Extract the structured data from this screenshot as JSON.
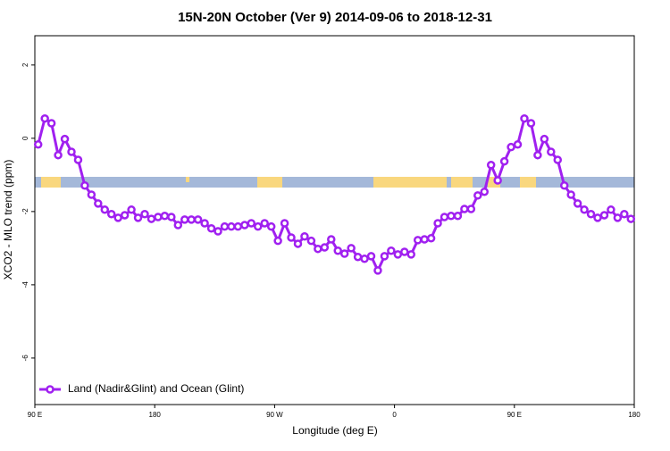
{
  "chart_data": {
    "type": "line",
    "title": "15N-20N October (Ver 9)   2014-09-06 to 2018-12-31",
    "x_label": "Longitude (deg E)",
    "y_label": "XCO2 - MLO trend (ppm)",
    "xlim": [
      90,
      540
    ],
    "ylim": [
      -7.27,
      2.8
    ],
    "xticks": [
      {
        "value": 90,
        "label": "90 E"
      },
      180,
      {
        "value": 270,
        "label": "90 W"
      },
      {
        "value": 360,
        "label": "0"
      },
      {
        "value": 450,
        "label": "90 E"
      },
      {
        "value": 540,
        "label": "180"
      }
    ],
    "yticks": [
      -6,
      -4,
      -2,
      0,
      2
    ],
    "legend": "bottom-left",
    "x": [
      92.5,
      97.5,
      102.5,
      107.5,
      112.5,
      117.5,
      122.5,
      127.5,
      132.5,
      137.5,
      142.5,
      147.5,
      152.5,
      157.5,
      162.5,
      167.5,
      172.5,
      177.5,
      182.5,
      187.5,
      192.5,
      197.5,
      202.5,
      207.5,
      212.5,
      217.5,
      222.5,
      227.5,
      232.5,
      237.5,
      242.5,
      247.5,
      252.5,
      257.5,
      262.5,
      267.5,
      272.5,
      277.5,
      282.5,
      287.5,
      292.5,
      297.5,
      302.5,
      307.5,
      312.5,
      317.5,
      322.5,
      327.5,
      332.5,
      337.5,
      342.5,
      347.5,
      352.5,
      357.5,
      362.5,
      367.5,
      372.5,
      377.5,
      382.5,
      387.5,
      392.5,
      397.5,
      402.5,
      407.5,
      412.5,
      417.5,
      422.5,
      427.5,
      432.5,
      437.5,
      442.5,
      447.5,
      452.5,
      457.5,
      462.5,
      467.5,
      472.5,
      477.5,
      482.5,
      487.5,
      492.5,
      497.5,
      502.5,
      507.5,
      512.5,
      517.5,
      522.5,
      527.5,
      532.5,
      537.5
    ],
    "series": [
      {
        "name": "Land (Nadir&Glint) and Ocean (Glint)",
        "color": "#a020f0",
        "values": [
          -0.17,
          0.54,
          0.41,
          -0.46,
          -0.02,
          -0.37,
          -0.59,
          -1.29,
          -1.54,
          -1.78,
          -1.95,
          -2.07,
          -2.17,
          -2.1,
          -1.95,
          -2.17,
          -2.07,
          -2.2,
          -2.15,
          -2.12,
          -2.15,
          -2.37,
          -2.22,
          -2.22,
          -2.22,
          -2.32,
          -2.46,
          -2.54,
          -2.41,
          -2.41,
          -2.41,
          -2.37,
          -2.32,
          -2.41,
          -2.32,
          -2.41,
          -2.8,
          -2.32,
          -2.71,
          -2.88,
          -2.68,
          -2.8,
          -3.02,
          -2.98,
          -2.76,
          -3.07,
          -3.15,
          -3.0,
          -3.24,
          -3.29,
          -3.22,
          -3.61,
          -3.22,
          -3.07,
          -3.17,
          -3.1,
          -3.17,
          -2.78,
          -2.76,
          -2.73,
          -2.32,
          -2.15,
          -2.12,
          -2.12,
          -1.93,
          -1.93,
          -1.56,
          -1.46,
          -0.73,
          -1.15,
          -0.63,
          -0.24,
          -0.17,
          0.54,
          0.41,
          -0.46,
          -0.02,
          -0.37,
          -0.59,
          -1.29,
          -1.54,
          -1.78,
          -1.95,
          -2.07,
          -2.17,
          -2.1,
          -1.95,
          -2.17,
          -2.07,
          -2.2
        ]
      }
    ]
  }
}
